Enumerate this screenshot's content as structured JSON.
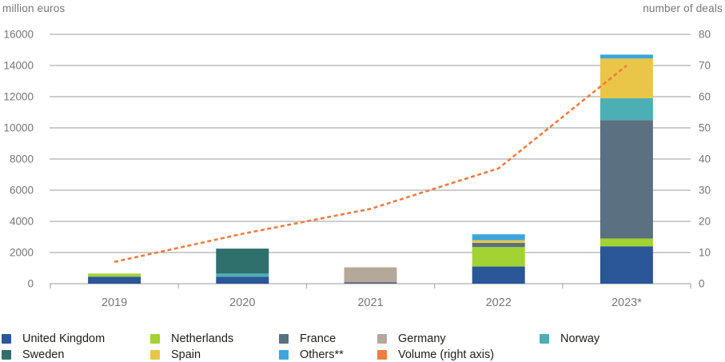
{
  "chart_data": {
    "type": "bar",
    "subtype": "stacked-bars-with-line-overlay",
    "categories": [
      "2019",
      "2020",
      "2021",
      "2022",
      "2023*"
    ],
    "series": [
      {
        "name": "United Kingdom",
        "color": "#2b5697",
        "values": [
          450,
          450,
          0,
          1100,
          2400
        ]
      },
      {
        "name": "Netherlands",
        "color": "#a3d233",
        "values": [
          200,
          0,
          0,
          1250,
          500
        ]
      },
      {
        "name": "France",
        "color": "#5b7080",
        "values": [
          0,
          0,
          100,
          270,
          7600
        ]
      },
      {
        "name": "Germany",
        "color": "#b4a89a",
        "values": [
          0,
          0,
          950,
          0,
          0
        ]
      },
      {
        "name": "Norway",
        "color": "#4cafb5",
        "values": [
          0,
          200,
          0,
          0,
          1400
        ]
      },
      {
        "name": "Sweden",
        "color": "#2f6f6c",
        "values": [
          0,
          1600,
          0,
          0,
          0
        ]
      },
      {
        "name": "Spain",
        "color": "#e9c647",
        "values": [
          0,
          0,
          0,
          170,
          2550
        ]
      },
      {
        "name": "Others**",
        "color": "#3ea5dc",
        "values": [
          0,
          0,
          0,
          380,
          250
        ]
      }
    ],
    "line_series": {
      "name": "Volume (right axis)",
      "color": "#ef7c42",
      "values": [
        7,
        16,
        24,
        37,
        70
      ]
    },
    "left_axis": {
      "title": "million euros",
      "min": 0,
      "max": 16000,
      "ticks": [
        0,
        2000,
        4000,
        6000,
        8000,
        10000,
        12000,
        14000,
        16000
      ]
    },
    "right_axis": {
      "title": "number of deals",
      "min": 0,
      "max": 80,
      "ticks": [
        0,
        10,
        20,
        30,
        40,
        50,
        60,
        70,
        80
      ]
    },
    "grid": true,
    "grid_color": "#9b9b9b",
    "legend_position": "bottom"
  },
  "legend": {
    "items": [
      {
        "label": "United Kingdom",
        "color": "#2b5697"
      },
      {
        "label": "Netherlands",
        "color": "#a3d233"
      },
      {
        "label": "France",
        "color": "#5b7080"
      },
      {
        "label": "Germany",
        "color": "#b4a89a"
      },
      {
        "label": "Norway",
        "color": "#4cafb5"
      },
      {
        "label": "Sweden",
        "color": "#2f6f6c"
      },
      {
        "label": "Spain",
        "color": "#e9c647"
      },
      {
        "label": "Others**",
        "color": "#3ea5dc"
      },
      {
        "label": "Volume (right axis)",
        "color": "#ef7c42"
      }
    ]
  }
}
